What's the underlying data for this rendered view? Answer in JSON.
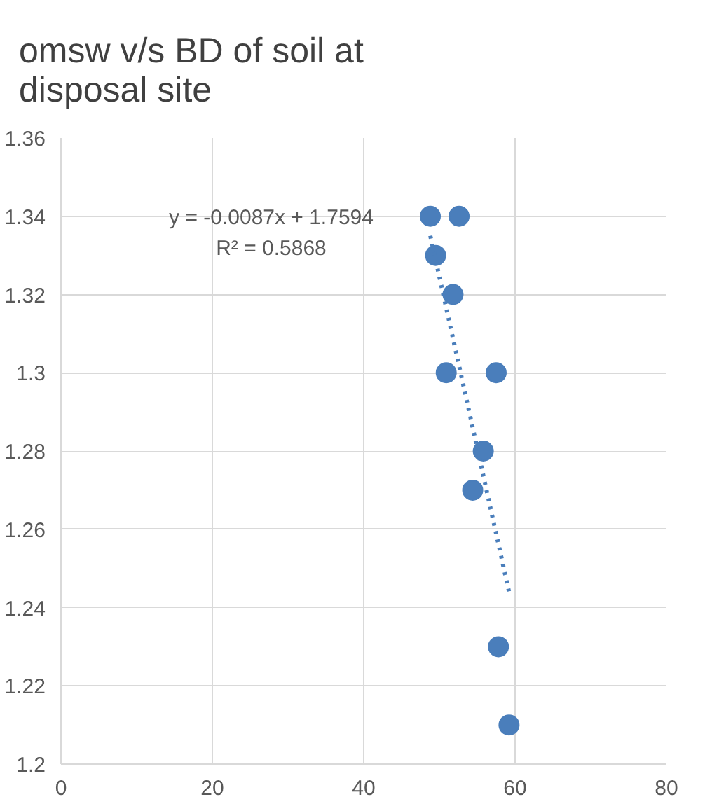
{
  "chart_data": {
    "type": "scatter",
    "title": "omsw v/s BD of soil at\ndisposal site",
    "series": [
      {
        "color": "#4a7ebb",
        "x": [
          48.8,
          52.6,
          49.5,
          51.8,
          50.9,
          57.5,
          55.8,
          54.4,
          57.8,
          59.2
        ],
        "values": [
          1.34,
          1.34,
          1.33,
          1.32,
          1.3,
          1.3,
          1.28,
          1.27,
          1.23,
          1.21
        ],
        "marker": "circle"
      },
      {
        "type": "line",
        "color": "#4a7ebb",
        "x": [
          48.8,
          59.2
        ],
        "values": [
          1.335,
          1.244
        ],
        "line_style": "dotted"
      }
    ],
    "annotations": [
      "y = -0.0087x + 1.7594\nR² = 0.5868"
    ],
    "xlim": [
      0,
      80
    ],
    "xticks": [
      0,
      20,
      40,
      60,
      80
    ],
    "ylim": [
      1.2,
      1.36
    ],
    "yticks": [
      1.2,
      1.22,
      1.24,
      1.26,
      1.28,
      1.3,
      1.32,
      1.34,
      1.36
    ],
    "grid": true
  }
}
